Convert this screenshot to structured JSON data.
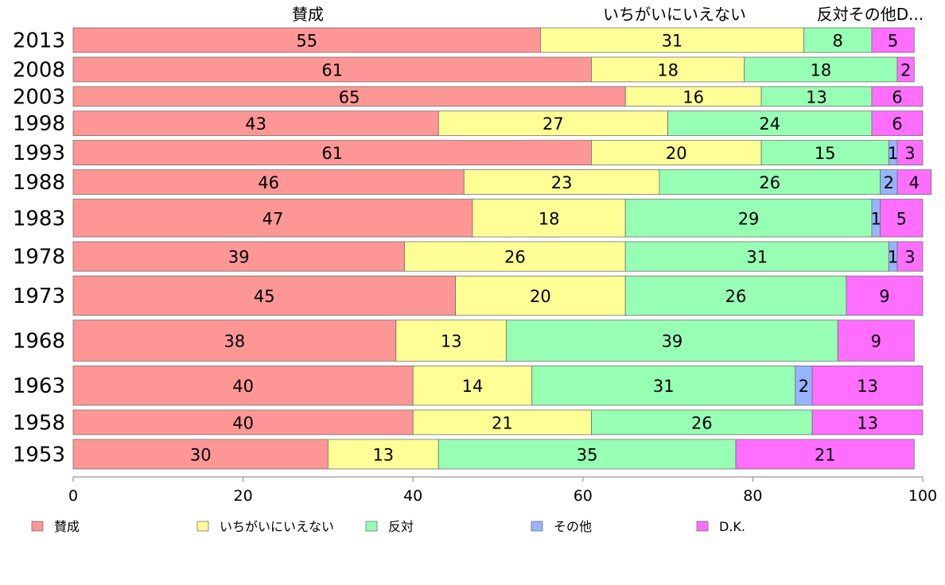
{
  "chart_data": {
    "type": "bar",
    "orientation": "horizontal",
    "stacked": true,
    "categories": [
      "2013",
      "2008",
      "2003",
      "1998",
      "1993",
      "1988",
      "1983",
      "1978",
      "1973",
      "1968",
      "1963",
      "1958",
      "1953"
    ],
    "series": [
      {
        "name": "賛成",
        "color": "#ff9696",
        "values": [
          55,
          61,
          65,
          43,
          61,
          46,
          47,
          39,
          45,
          38,
          40,
          40,
          30
        ]
      },
      {
        "name": "いちがいにいえない",
        "color": "#ffff96",
        "values": [
          31,
          18,
          16,
          27,
          20,
          23,
          18,
          26,
          20,
          13,
          14,
          21,
          13
        ]
      },
      {
        "name": "反対",
        "color": "#96ffb4",
        "values": [
          8,
          18,
          13,
          24,
          15,
          26,
          29,
          31,
          26,
          39,
          31,
          26,
          35
        ]
      },
      {
        "name": "その他",
        "color": "#96b4ff",
        "values": [
          0,
          0,
          0,
          0,
          1,
          2,
          1,
          1,
          0,
          0,
          2,
          0,
          0
        ]
      },
      {
        "name": "D.K.",
        "color": "#ff6eff",
        "values": [
          5,
          2,
          6,
          6,
          3,
          4,
          5,
          3,
          9,
          9,
          13,
          13,
          21
        ]
      }
    ],
    "segment_labels": [
      [
        "55",
        "31",
        "8",
        "",
        "5"
      ],
      [
        "61",
        "18",
        "18",
        "",
        "2"
      ],
      [
        "65",
        "16",
        "13",
        "",
        "6"
      ],
      [
        "43",
        "27",
        "24",
        "",
        "6"
      ],
      [
        "61",
        "20",
        "15",
        "1",
        "3"
      ],
      [
        "46",
        "23",
        "26",
        "2",
        "4"
      ],
      [
        "47",
        "18",
        "29",
        "1",
        "5"
      ],
      [
        "39",
        "26",
        "31",
        "1",
        "3"
      ],
      [
        "45",
        "20",
        "26",
        "",
        "9"
      ],
      [
        "38",
        "13",
        "39",
        "",
        "9"
      ],
      [
        "40",
        "14",
        "31",
        "2",
        "13"
      ],
      [
        "40",
        "21",
        "26",
        "",
        "13"
      ],
      [
        "30",
        "13",
        "35",
        "",
        "21"
      ]
    ],
    "row_weights": [
      30,
      30,
      24,
      30,
      30,
      30,
      46,
      36,
      48,
      50,
      48,
      30,
      36
    ],
    "top_labels": [
      "賛成",
      "いちがいにいえない",
      "反対その他D..."
    ],
    "xlim": [
      0,
      100
    ],
    "xticks": [
      "0",
      "20",
      "40",
      "60",
      "80",
      "100"
    ],
    "legend_position": "bottom",
    "legend": [
      "賛成",
      "いちがいにいえない",
      "反対",
      "その他",
      "D.K."
    ]
  }
}
